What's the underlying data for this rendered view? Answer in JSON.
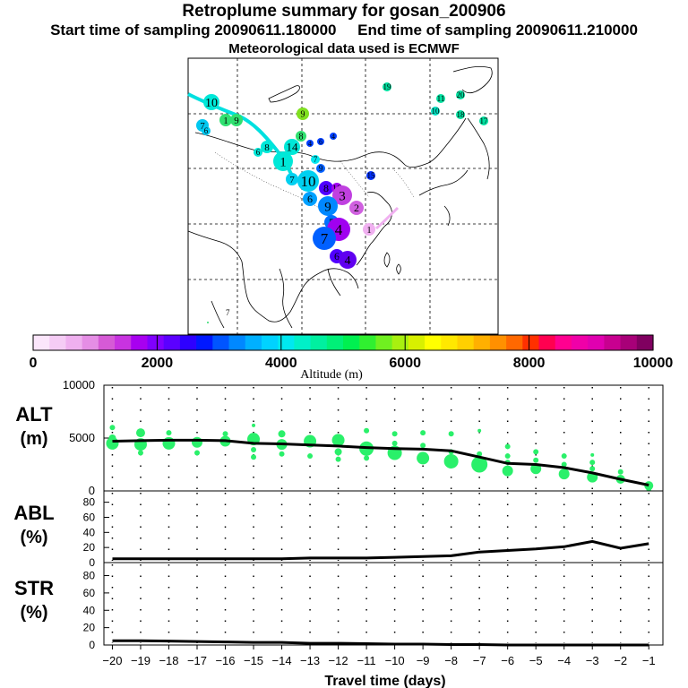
{
  "header": {
    "title": "Retroplume summary for gosan_200906",
    "start_label": "Start time of sampling 20090611.180000",
    "end_label": "End time of sampling 20090611.210000",
    "met_label": "Meteorological data used is ECMWF"
  },
  "colorbar": {
    "label": "Altitude (m)",
    "ticks": [
      "0",
      "2000",
      "4000",
      "6000",
      "8000",
      "10000"
    ],
    "colors": [
      "#fbe6fb",
      "#f5ccf5",
      "#efb0ef",
      "#e58ee5",
      "#d65ad6",
      "#c833e0",
      "#a800f0",
      "#8000ff",
      "#5b00ff",
      "#2e00ff",
      "#0018ff",
      "#0055ff",
      "#0088ff",
      "#00b0ff",
      "#00d2ff",
      "#00e8f0",
      "#00f0c8",
      "#00f0a0",
      "#00f078",
      "#00f050",
      "#30f030",
      "#70f020",
      "#a8f010",
      "#d8f000",
      "#ffff00",
      "#ffe800",
      "#ffd000",
      "#ffb000",
      "#ff9000",
      "#ff6800",
      "#ff3000",
      "#ff0050",
      "#ff0090",
      "#f000a8",
      "#e000b0",
      "#c80090",
      "#a80078",
      "#800060"
    ]
  },
  "map_markers": [
    {
      "label": "10",
      "color": "#00e8d8"
    },
    {
      "label": "1",
      "color": "#30e070"
    },
    {
      "label": "9",
      "color": "#30e070"
    },
    {
      "label": "7",
      "color": "#00c8f0"
    },
    {
      "label": "6",
      "color": "#00c8f0"
    },
    {
      "label": "9",
      "color": "#80e020"
    },
    {
      "label": "19",
      "color": "#00e0a0"
    },
    {
      "label": "11",
      "color": "#00e0a0"
    },
    {
      "label": "20",
      "color": "#00e0a0"
    },
    {
      "label": "10",
      "color": "#00e0c0"
    },
    {
      "label": "18",
      "color": "#00e0a0"
    },
    {
      "label": "17",
      "color": "#00e0a0"
    },
    {
      "label": "8",
      "color": "#30e070"
    },
    {
      "label": "4",
      "color": "#0040ff"
    },
    {
      "label": "6",
      "color": "#0040ff"
    },
    {
      "label": "4",
      "color": "#0040ff"
    },
    {
      "label": "8",
      "color": "#00e8d8"
    },
    {
      "label": "6",
      "color": "#00e8d8"
    },
    {
      "label": "14",
      "color": "#00e8d8"
    },
    {
      "label": "1",
      "color": "#00e8d8"
    },
    {
      "label": "7",
      "color": "#00e8f0"
    },
    {
      "label": "9",
      "color": "#0060ff"
    },
    {
      "label": "7",
      "color": "#00d0f0"
    },
    {
      "label": "10",
      "color": "#00d0f0"
    },
    {
      "label": "15",
      "color": "#0030ff"
    },
    {
      "label": "6",
      "color": "#00a0ff"
    },
    {
      "label": "8",
      "color": "#5000ff"
    },
    {
      "label": "16",
      "color": "#a000f0"
    },
    {
      "label": "3",
      "color": "#c040e0"
    },
    {
      "label": "2",
      "color": "#d060e0"
    },
    {
      "label": "9",
      "color": "#0088ff"
    },
    {
      "label": "5",
      "color": "#0070ff"
    },
    {
      "label": "4",
      "color": "#a000f0"
    },
    {
      "label": "1",
      "color": "#f0b0f0"
    },
    {
      "label": "7",
      "color": "#0060ff"
    },
    {
      "label": "6",
      "color": "#5000ff"
    },
    {
      "label": "4",
      "color": "#6000f0"
    },
    {
      "label": "7",
      "color": "#30e070"
    }
  ],
  "chart_data": [
    {
      "type": "line",
      "name": "ALT",
      "ylabel_line1": "ALT",
      "ylabel_line2": "(m)",
      "ytick_labels": [
        "10000",
        "5000",
        "0"
      ],
      "ylim": [
        0,
        10000
      ],
      "xlim": [
        -20.3,
        -0.5
      ],
      "x": [
        -20,
        -19,
        -18,
        -17,
        -16,
        -15,
        -14,
        -13,
        -12,
        -11,
        -10,
        -9,
        -8,
        -7,
        -6,
        -5,
        -4,
        -3,
        -2,
        -1
      ],
      "values": [
        4700,
        4750,
        4800,
        4800,
        4750,
        4500,
        4450,
        4350,
        4250,
        4100,
        4000,
        3950,
        3800,
        3200,
        2600,
        2500,
        2200,
        1700,
        1100,
        550
      ],
      "scatter": [
        {
          "x": -20,
          "y": 4500,
          "s": 7
        },
        {
          "x": -20,
          "y": 6000,
          "s": 3
        },
        {
          "x": -20,
          "y": 5000,
          "s": 4
        },
        {
          "x": -19,
          "y": 4400,
          "s": 7
        },
        {
          "x": -19,
          "y": 5500,
          "s": 5
        },
        {
          "x": -19,
          "y": 3600,
          "s": 3
        },
        {
          "x": -18,
          "y": 4500,
          "s": 7
        },
        {
          "x": -18,
          "y": 5500,
          "s": 3
        },
        {
          "x": -17,
          "y": 4600,
          "s": 6
        },
        {
          "x": -17,
          "y": 3600,
          "s": 3
        },
        {
          "x": -16,
          "y": 4700,
          "s": 6
        },
        {
          "x": -16,
          "y": 5400,
          "s": 3
        },
        {
          "x": -15,
          "y": 4900,
          "s": 7
        },
        {
          "x": -15,
          "y": 6200,
          "s": 2
        },
        {
          "x": -15,
          "y": 3900,
          "s": 3
        },
        {
          "x": -15,
          "y": 3200,
          "s": 3
        },
        {
          "x": -14,
          "y": 4400,
          "s": 6
        },
        {
          "x": -14,
          "y": 5400,
          "s": 4
        },
        {
          "x": -14,
          "y": 3500,
          "s": 3
        },
        {
          "x": -13,
          "y": 4700,
          "s": 7
        },
        {
          "x": -13,
          "y": 3300,
          "s": 3
        },
        {
          "x": -12,
          "y": 4800,
          "s": 7
        },
        {
          "x": -12,
          "y": 3700,
          "s": 4
        },
        {
          "x": -12,
          "y": 3000,
          "s": 3
        },
        {
          "x": -11,
          "y": 4000,
          "s": 8
        },
        {
          "x": -11,
          "y": 5700,
          "s": 3
        },
        {
          "x": -11,
          "y": 3100,
          "s": 3
        },
        {
          "x": -10,
          "y": 3600,
          "s": 8
        },
        {
          "x": -10,
          "y": 5400,
          "s": 3
        },
        {
          "x": -10,
          "y": 4500,
          "s": 3
        },
        {
          "x": -9,
          "y": 3100,
          "s": 7
        },
        {
          "x": -9,
          "y": 5500,
          "s": 3
        },
        {
          "x": -9,
          "y": 4300,
          "s": 3
        },
        {
          "x": -8,
          "y": 2800,
          "s": 8
        },
        {
          "x": -8,
          "y": 5400,
          "s": 3
        },
        {
          "x": -8,
          "y": 3700,
          "s": 3
        },
        {
          "x": -7,
          "y": 2500,
          "s": 9
        },
        {
          "x": -7,
          "y": 3500,
          "s": 3
        },
        {
          "x": -7,
          "y": 5700,
          "s": 2
        },
        {
          "x": -6,
          "y": 1900,
          "s": 6
        },
        {
          "x": -6,
          "y": 3300,
          "s": 3
        },
        {
          "x": -6,
          "y": 4200,
          "s": 3
        },
        {
          "x": -6,
          "y": 2700,
          "s": 3
        },
        {
          "x": -5,
          "y": 2100,
          "s": 6
        },
        {
          "x": -5,
          "y": 3700,
          "s": 3
        },
        {
          "x": -5,
          "y": 2900,
          "s": 3
        },
        {
          "x": -4,
          "y": 1600,
          "s": 6
        },
        {
          "x": -4,
          "y": 3300,
          "s": 3
        },
        {
          "x": -4,
          "y": 2500,
          "s": 3
        },
        {
          "x": -3,
          "y": 1300,
          "s": 6
        },
        {
          "x": -3,
          "y": 2700,
          "s": 3
        },
        {
          "x": -3,
          "y": 2100,
          "s": 3
        },
        {
          "x": -3,
          "y": 3400,
          "s": 2
        },
        {
          "x": -2,
          "y": 1100,
          "s": 5
        },
        {
          "x": -2,
          "y": 1800,
          "s": 3
        },
        {
          "x": -1,
          "y": 500,
          "s": 5
        },
        {
          "x": -1,
          "y": 200,
          "s": 3
        }
      ]
    },
    {
      "type": "line",
      "name": "ABL",
      "ylabel_line1": "ABL",
      "ylabel_line2": "(%)",
      "ytick_labels": [
        "80",
        "60",
        "40",
        "20",
        "0"
      ],
      "ylim": [
        0,
        95
      ],
      "xlim": [
        -20.3,
        -0.5
      ],
      "x": [
        -20,
        -19,
        -18,
        -17,
        -16,
        -15,
        -14,
        -13,
        -12,
        -11,
        -10,
        -9,
        -8,
        -7,
        -6,
        -5,
        -4,
        -3,
        -2,
        -1
      ],
      "values": [
        5,
        5,
        5,
        5,
        5,
        5,
        5,
        6,
        6,
        6,
        7,
        8,
        9,
        14,
        16,
        18,
        21,
        28,
        19,
        25
      ]
    },
    {
      "type": "line",
      "name": "STR",
      "ylabel_line1": "STR",
      "ylabel_line2": "(%)",
      "ytick_labels": [
        "80",
        "60",
        "40",
        "20",
        "0"
      ],
      "ylim": [
        0,
        95
      ],
      "xlim": [
        -20.3,
        -0.5
      ],
      "x": [
        -20,
        -19,
        -18,
        -17,
        -16,
        -15,
        -14,
        -13,
        -12,
        -11,
        -10,
        -9,
        -8,
        -7,
        -6,
        -5,
        -4,
        -3,
        -2,
        -1
      ],
      "values": [
        5,
        5,
        4.5,
        4,
        3.5,
        3,
        3,
        2,
        2,
        1.5,
        1,
        1,
        0.5,
        0.5,
        0,
        0,
        0,
        0,
        0,
        0
      ],
      "xtick_labels": [
        "−20",
        "−19",
        "−18",
        "−17",
        "−16",
        "−15",
        "−14",
        "−13",
        "−12",
        "−11",
        "−10",
        "−9",
        "−8",
        "−7",
        "−6",
        "−5",
        "−4",
        "−3",
        "−2",
        "−1"
      ],
      "xlabel": "Travel time (days)"
    }
  ]
}
